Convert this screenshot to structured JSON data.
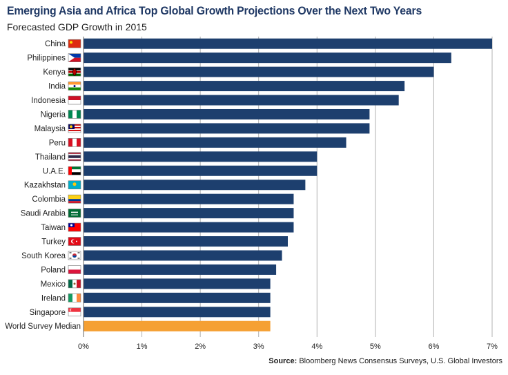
{
  "title": "Emerging Asia and Africa Top Global Growth Projections Over the Next Two Years",
  "subtitle": "Forecasted GDP Growth in 2015",
  "source_label": "Source:",
  "source_text": "Bloomberg News Consensus Surveys, U.S. Global Investors",
  "colors": {
    "bar": "#1d3f6e",
    "median_bar": "#f5a033",
    "grid": "#b0b0b0"
  },
  "chart_data": {
    "type": "bar",
    "orientation": "horizontal",
    "title": "Emerging Asia and Africa Top Global Growth Projections Over the Next Two Years",
    "subtitle": "Forecasted GDP Growth in 2015",
    "categories": [
      "China",
      "Philippines",
      "Kenya",
      "India",
      "Indonesia",
      "Nigeria",
      "Malaysia",
      "Peru",
      "Thailand",
      "U.A.E.",
      "Kazakhstan",
      "Colombia",
      "Saudi Arabia",
      "Taiwan",
      "Turkey",
      "South Korea",
      "Poland",
      "Mexico",
      "Ireland",
      "Singapore",
      "World Survey Median"
    ],
    "values": [
      7.0,
      6.3,
      6.0,
      5.5,
      5.4,
      4.9,
      4.9,
      4.5,
      4.0,
      4.0,
      3.8,
      3.6,
      3.6,
      3.6,
      3.5,
      3.4,
      3.3,
      3.2,
      3.2,
      3.2,
      3.2
    ],
    "highlight": "World Survey Median",
    "xlim": [
      0,
      7
    ],
    "xticks": [
      "0%",
      "1%",
      "2%",
      "3%",
      "4%",
      "5%",
      "6%",
      "7%"
    ],
    "grid": true,
    "flags": [
      "china-flag",
      "philippines-flag",
      "kenya-flag",
      "india-flag",
      "indonesia-flag",
      "nigeria-flag",
      "malaysia-flag",
      "peru-flag",
      "thailand-flag",
      "uae-flag",
      "kazakhstan-flag",
      "colombia-flag",
      "saudi-arabia-flag",
      "taiwan-flag",
      "turkey-flag",
      "south-korea-flag",
      "poland-flag",
      "mexico-flag",
      "ireland-flag",
      "singapore-flag",
      ""
    ]
  }
}
